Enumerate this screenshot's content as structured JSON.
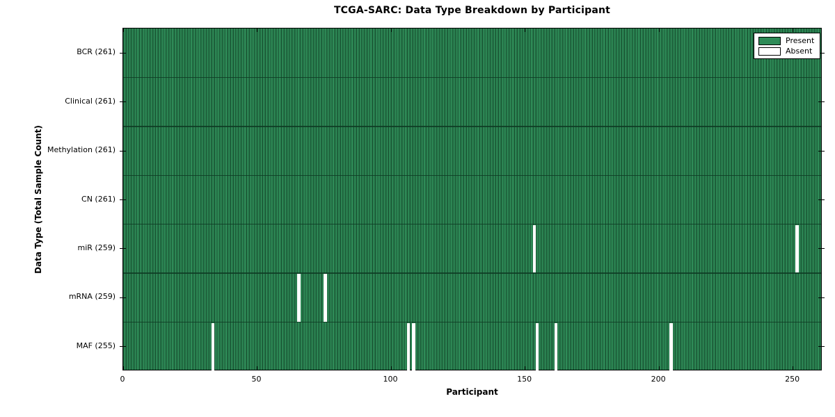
{
  "chart_data": {
    "type": "heatmap",
    "title": "TCGA-SARC: Data Type Breakdown by Participant",
    "xlabel": "Participant",
    "ylabel": "Data Type (Total Sample Count)",
    "n_participants": 261,
    "xlim": [
      0,
      261
    ],
    "x_ticks": [
      0,
      50,
      100,
      150,
      200,
      250
    ],
    "grid": false,
    "legend_position": "upper right",
    "rows": [
      {
        "name": "BCR",
        "label": "BCR (261)",
        "present_count": 261,
        "absent_participants": []
      },
      {
        "name": "Clinical",
        "label": "Clinical (261)",
        "present_count": 261,
        "absent_participants": []
      },
      {
        "name": "Methylation",
        "label": "Methylation (261)",
        "present_count": 261,
        "absent_participants": []
      },
      {
        "name": "CN",
        "label": "CN (261)",
        "present_count": 261,
        "absent_participants": []
      },
      {
        "name": "miR",
        "label": "miR (259)",
        "present_count": 259,
        "absent_participants": [
          153,
          251
        ]
      },
      {
        "name": "mRNA",
        "label": "mRNA (259)",
        "present_count": 259,
        "absent_participants": [
          65,
          75
        ]
      },
      {
        "name": "MAF",
        "label": "MAF (255)",
        "present_count": 255,
        "absent_participants": [
          33,
          106,
          108,
          154,
          161,
          204
        ]
      }
    ],
    "legend": [
      {
        "label": "Present",
        "color": "#2e8b57"
      },
      {
        "label": "Absent",
        "color": "#ffffff"
      }
    ],
    "colors": {
      "present_fill": "#2e8b57",
      "cell_edge_dark": "#16502f",
      "cell_mid": "#27754a",
      "absent_fill": "#ffffff",
      "border": "#000000"
    }
  }
}
